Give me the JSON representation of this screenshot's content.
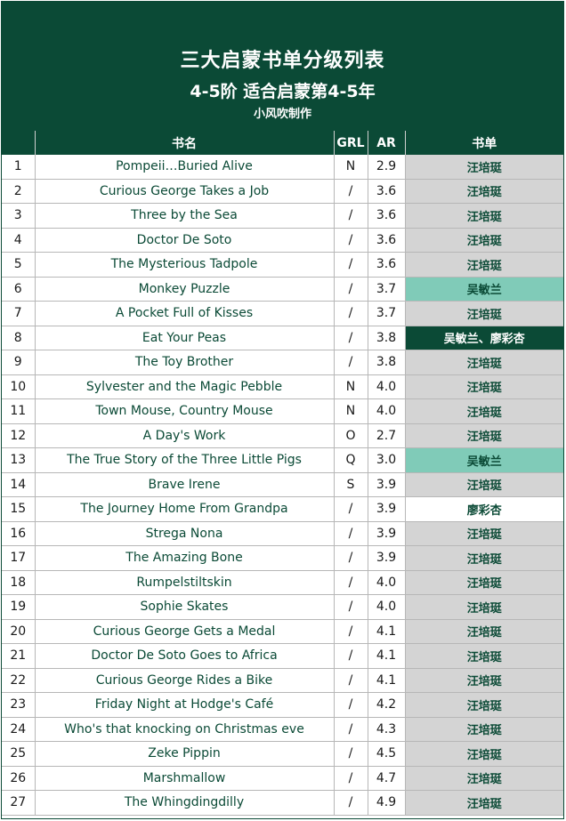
{
  "banner": {
    "title": "三大启蒙书单分级列表",
    "subtitle": "4-5阶 适合启蒙第4-5年",
    "credit": "小风吹制作"
  },
  "table": {
    "headers": {
      "no": "",
      "title": "书名",
      "grl": "GRL",
      "ar": "AR",
      "list": "书单"
    },
    "rows": [
      {
        "no": "1",
        "title": "Pompeii…Buried Alive",
        "grl": "N",
        "ar": "2.9",
        "list": "汪培珽",
        "list_style": "gray"
      },
      {
        "no": "2",
        "title": "Curious George Takes a Job",
        "grl": "/",
        "ar": "3.6",
        "list": "汪培珽",
        "list_style": "gray"
      },
      {
        "no": "3",
        "title": "Three by the Sea",
        "grl": "/",
        "ar": "3.6",
        "list": "汪培珽",
        "list_style": "gray"
      },
      {
        "no": "4",
        "title": "Doctor De Soto",
        "grl": "/",
        "ar": "3.6",
        "list": "汪培珽",
        "list_style": "gray"
      },
      {
        "no": "5",
        "title": "The Mysterious Tadpole",
        "grl": "/",
        "ar": "3.6",
        "list": "汪培珽",
        "list_style": "gray"
      },
      {
        "no": "6",
        "title": "Monkey Puzzle",
        "grl": "/",
        "ar": "3.7",
        "list": "吴敏兰",
        "list_style": "teal"
      },
      {
        "no": "7",
        "title": "A Pocket Full of Kisses",
        "grl": "/",
        "ar": "3.7",
        "list": "汪培珽",
        "list_style": "gray"
      },
      {
        "no": "8",
        "title": "Eat Your Peas",
        "grl": "/",
        "ar": "3.8",
        "list": "吴敏兰、廖彩杏",
        "list_style": "dark"
      },
      {
        "no": "9",
        "title": "The Toy Brother",
        "grl": "/",
        "ar": "3.8",
        "list": "汪培珽",
        "list_style": "gray"
      },
      {
        "no": "10",
        "title": "Sylvester and the Magic Pebble",
        "grl": "N",
        "ar": "4.0",
        "list": "汪培珽",
        "list_style": "gray"
      },
      {
        "no": "11",
        "title": "Town Mouse, Country Mouse",
        "grl": "N",
        "ar": "4.0",
        "list": "汪培珽",
        "list_style": "gray"
      },
      {
        "no": "12",
        "title": "A Day's Work",
        "grl": "O",
        "ar": "2.7",
        "list": "汪培珽",
        "list_style": "gray"
      },
      {
        "no": "13",
        "title": "The True Story of the Three Little Pigs",
        "grl": "Q",
        "ar": "3.0",
        "list": "吴敏兰",
        "list_style": "teal"
      },
      {
        "no": "14",
        "title": "Brave Irene",
        "grl": "S",
        "ar": "3.9",
        "list": "汪培珽",
        "list_style": "gray"
      },
      {
        "no": "15",
        "title": "The Journey Home From Grandpa",
        "grl": "/",
        "ar": "3.9",
        "list": "廖彩杏",
        "list_style": "white"
      },
      {
        "no": "16",
        "title": "Strega Nona",
        "grl": "/",
        "ar": "3.9",
        "list": "汪培珽",
        "list_style": "gray"
      },
      {
        "no": "17",
        "title": "The Amazing Bone",
        "grl": "/",
        "ar": "3.9",
        "list": "汪培珽",
        "list_style": "gray"
      },
      {
        "no": "18",
        "title": "Rumpelstiltskin",
        "grl": "/",
        "ar": "4.0",
        "list": "汪培珽",
        "list_style": "gray"
      },
      {
        "no": "19",
        "title": "Sophie Skates",
        "grl": "/",
        "ar": "4.0",
        "list": "汪培珽",
        "list_style": "gray"
      },
      {
        "no": "20",
        "title": "Curious George Gets a Medal",
        "grl": "/",
        "ar": "4.1",
        "list": "汪培珽",
        "list_style": "gray"
      },
      {
        "no": "21",
        "title": "Doctor De Soto Goes to Africa",
        "grl": "/",
        "ar": "4.1",
        "list": "汪培珽",
        "list_style": "gray"
      },
      {
        "no": "22",
        "title": "Curious George Rides a Bike",
        "grl": "/",
        "ar": "4.1",
        "list": "汪培珽",
        "list_style": "gray"
      },
      {
        "no": "23",
        "title": "Friday Night at Hodge's Café",
        "grl": "/",
        "ar": "4.2",
        "list": "汪培珽",
        "list_style": "gray"
      },
      {
        "no": "24",
        "title": "Who's that knocking on Christmas eve",
        "grl": "/",
        "ar": "4.3",
        "list": "汪培珽",
        "list_style": "gray"
      },
      {
        "no": "25",
        "title": "Zeke Pippin",
        "grl": "/",
        "ar": "4.5",
        "list": "汪培珽",
        "list_style": "gray"
      },
      {
        "no": "26",
        "title": "Marshmallow",
        "grl": "/",
        "ar": "4.7",
        "list": "汪培珽",
        "list_style": "gray"
      },
      {
        "no": "27",
        "title": "The Whingdingdilly",
        "grl": "/",
        "ar": "4.9",
        "list": "汪培珽",
        "list_style": "gray"
      }
    ]
  },
  "colors": {
    "header_green": "#0b4a36",
    "gray_fill": "#d4d4d4",
    "teal_fill": "#80cbb8",
    "white_fill": "#ffffff"
  }
}
